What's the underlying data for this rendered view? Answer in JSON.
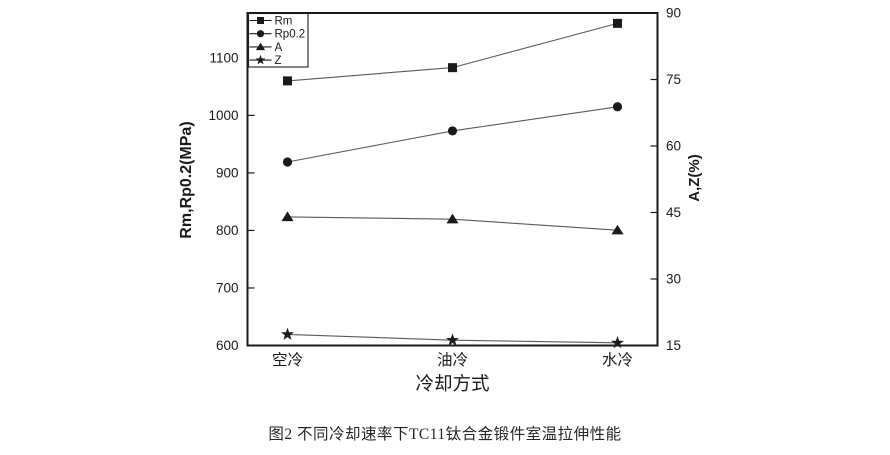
{
  "figure": {
    "caption": "图2  不同冷却速率下TC11钛合金锻件室温拉伸性能"
  },
  "chart_data": {
    "type": "line",
    "title": "",
    "categories": [
      "空冷",
      "油冷",
      "水冷"
    ],
    "xlabel": "冷却方式",
    "ylabel_left": "Rm,Rp0.2(MPa)",
    "ylabel_right": "A,Z(%)",
    "left_axis": {
      "min": 600,
      "max": 1178,
      "ticks": [
        600,
        700,
        800,
        900,
        1000,
        1100
      ],
      "unit": "MPa"
    },
    "right_axis": {
      "min": 15,
      "max": 90,
      "ticks": [
        15,
        30,
        45,
        60,
        75,
        90
      ],
      "unit": "%"
    },
    "series": [
      {
        "name": "Rm",
        "marker": "square",
        "axis": "left",
        "values": [
          1060,
          1083,
          1160
        ]
      },
      {
        "name": "Rp0.2",
        "marker": "circle",
        "axis": "left",
        "values": [
          919,
          973,
          1015
        ]
      },
      {
        "name": "A",
        "marker": "triangle",
        "axis": "right",
        "values": [
          44,
          43.5,
          41
        ]
      },
      {
        "name": "Z",
        "marker": "star",
        "axis": "right",
        "values": [
          17.5,
          16.2,
          15.6
        ]
      }
    ],
    "legend_position": "top-left",
    "grid": false,
    "colors": {
      "ink": "#1a1a1a",
      "line": "#5a5a5a",
      "background": "#ffffff"
    }
  }
}
